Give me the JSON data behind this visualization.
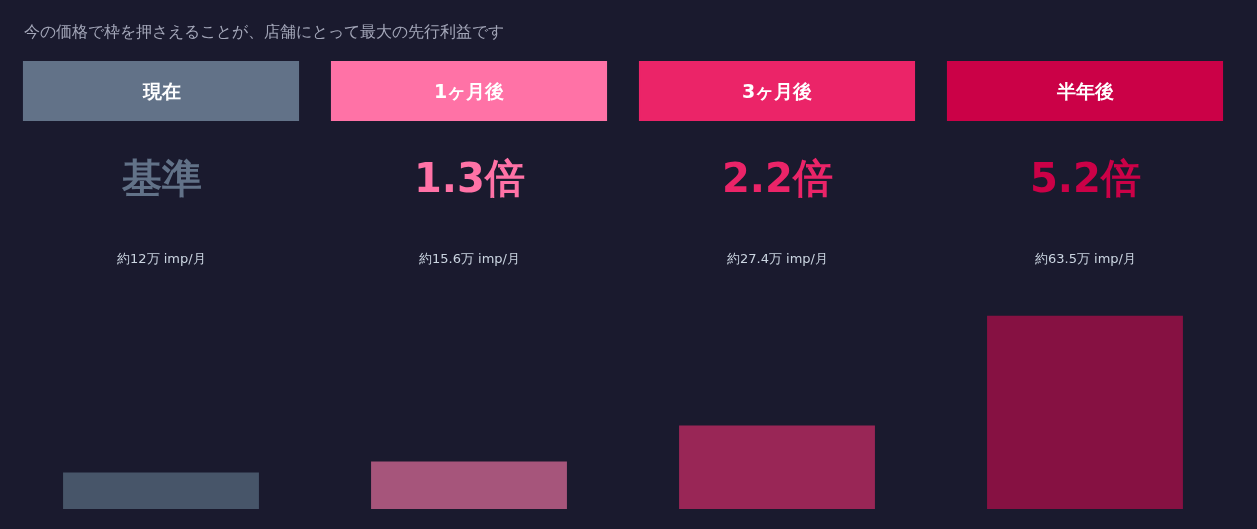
{
  "chart_data": {
    "type": "bar",
    "title": "今の価格で枠を押さえることが、店舗にとって最大の先行利益です",
    "categories": [
      "現在",
      "1ヶ月後",
      "3ヶ月後",
      "半年後"
    ],
    "values": [
      12,
      15.6,
      27.4,
      63.5
    ],
    "colors": [
      "#475569",
      "#a6557b",
      "#992656",
      "#861142"
    ],
    "value_labels": [
      "約12万 imp/月",
      "約15.6万 imp/月",
      "約27.4万 imp/月",
      "約63.5万 imp/月"
    ],
    "annotations": [
      "基準",
      "1.3倍",
      "2.2倍",
      "5.2倍"
    ],
    "tick_labels": "x"
  }
}
